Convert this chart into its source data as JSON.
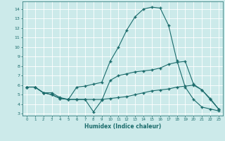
{
  "xlabel": "Humidex (Indice chaleur)",
  "bg_color": "#cceaea",
  "line_color": "#1a6b6b",
  "grid_color": "#ffffff",
  "xlim": [
    -0.5,
    23.5
  ],
  "ylim": [
    2.8,
    14.8
  ],
  "yticks": [
    3,
    4,
    5,
    6,
    7,
    8,
    9,
    10,
    11,
    12,
    13,
    14
  ],
  "xticks": [
    0,
    1,
    2,
    3,
    4,
    5,
    6,
    7,
    8,
    9,
    10,
    11,
    12,
    13,
    14,
    15,
    16,
    17,
    18,
    19,
    20,
    21,
    22,
    23
  ],
  "line1_x": [
    0,
    1,
    2,
    3,
    4,
    5,
    6,
    7,
    8,
    9,
    10,
    11,
    12,
    13,
    14,
    15,
    16,
    17,
    18,
    19,
    20,
    21,
    22,
    23
  ],
  "line1_y": [
    5.8,
    5.8,
    5.2,
    5.0,
    4.6,
    4.5,
    5.8,
    5.9,
    6.1,
    6.3,
    8.5,
    10.0,
    11.8,
    13.2,
    14.0,
    14.2,
    14.1,
    12.3,
    8.6,
    5.8,
    4.5,
    3.7,
    3.5,
    3.3
  ],
  "line2_x": [
    0,
    1,
    2,
    3,
    4,
    5,
    6,
    7,
    8,
    9,
    10,
    11,
    12,
    13,
    14,
    15,
    16,
    17,
    18,
    19,
    20,
    21,
    22,
    23
  ],
  "line2_y": [
    5.8,
    5.8,
    5.2,
    5.2,
    4.7,
    4.5,
    4.5,
    4.5,
    3.2,
    4.4,
    6.5,
    7.0,
    7.2,
    7.4,
    7.5,
    7.6,
    7.8,
    8.2,
    8.4,
    8.5,
    6.1,
    5.5,
    4.6,
    3.5
  ],
  "line3_x": [
    0,
    1,
    2,
    3,
    4,
    5,
    6,
    7,
    8,
    9,
    10,
    11,
    12,
    13,
    14,
    15,
    16,
    17,
    18,
    19,
    20,
    21,
    22,
    23
  ],
  "line3_y": [
    5.8,
    5.8,
    5.2,
    5.0,
    4.6,
    4.5,
    4.5,
    4.5,
    4.5,
    4.5,
    4.6,
    4.7,
    4.8,
    5.0,
    5.2,
    5.4,
    5.5,
    5.6,
    5.8,
    5.9,
    6.0,
    5.5,
    4.5,
    3.5
  ]
}
